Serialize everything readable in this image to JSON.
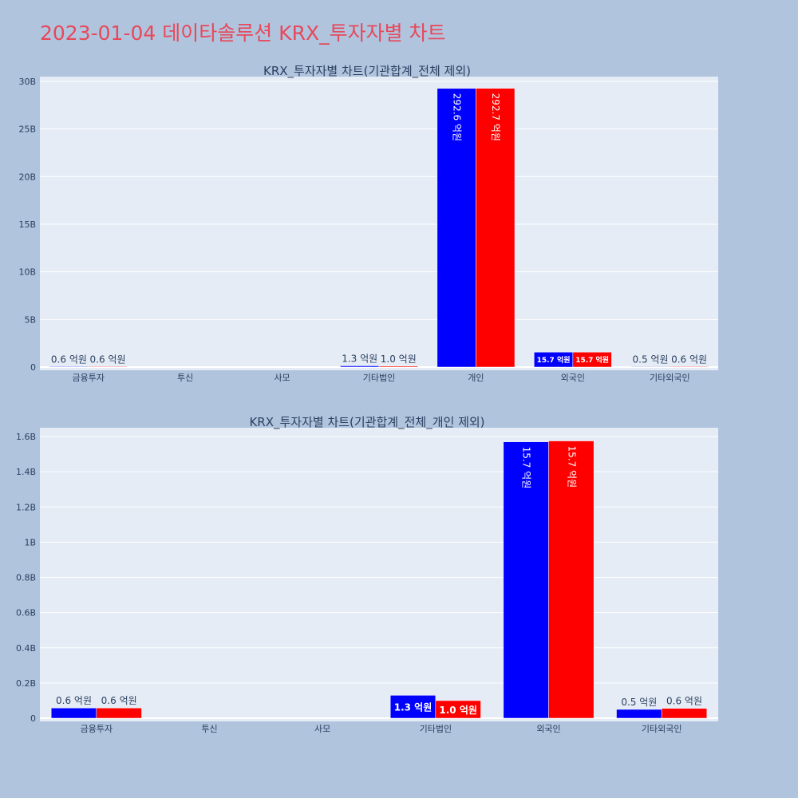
{
  "page_title": "2023-01-04 데이타솔루션 KRX_투자자별 차트",
  "colors": {
    "background": "#b0c4de",
    "plot_bg": "#e5ecf6",
    "title": "#e8485a",
    "buy": "#0000ff",
    "sell": "#ff0000"
  },
  "chart_data": [
    {
      "type": "bar",
      "title": "KRX_투자자별 차트(기관합계_전체 제외)",
      "categories": [
        "금융투자",
        "투신",
        "사모",
        "기타법인",
        "개인",
        "외국인",
        "기타외국인"
      ],
      "series": [
        {
          "color": "#0000ff",
          "values": [
            0.06,
            0,
            0,
            0.13,
            29.26,
            1.57,
            0.05
          ],
          "labels": [
            "0.6 억원",
            "",
            "",
            "1.3 억원",
            "292.6 억원",
            "15.7 억원",
            "0.5 억원"
          ]
        },
        {
          "color": "#ff0000",
          "values": [
            0.06,
            0,
            0,
            0.1,
            29.27,
            1.57,
            0.06
          ],
          "labels": [
            "0.6 억원",
            "",
            "",
            "1.0 억원",
            "292.7 억원",
            "15.7 억원",
            "0.6 억원"
          ]
        }
      ],
      "yticks": [
        "0",
        "5B",
        "10B",
        "15B",
        "20B",
        "25B",
        "30B"
      ],
      "ylim": [
        0,
        30.5
      ]
    },
    {
      "type": "bar",
      "title": "KRX_투자자별 차트(기관합계_전체_개인 제외)",
      "categories": [
        "금융투자",
        "투신",
        "사모",
        "기타법인",
        "외국인",
        "기타외국인"
      ],
      "series": [
        {
          "color": "#0000ff",
          "values": [
            0.058,
            0,
            0,
            0.13,
            1.57,
            0.05
          ],
          "labels": [
            "0.6 억원",
            "",
            "",
            "1.3 억원",
            "15.7 억원",
            "0.5 억원"
          ]
        },
        {
          "color": "#ff0000",
          "values": [
            0.058,
            0,
            0,
            0.1,
            1.575,
            0.056
          ],
          "labels": [
            "0.6 억원",
            "",
            "",
            "1.0 억원",
            "15.7 억원",
            "0.6 억원"
          ]
        }
      ],
      "yticks": [
        "0",
        "0.2B",
        "0.4B",
        "0.6B",
        "0.8B",
        "1B",
        "1.2B",
        "1.4B",
        "1.6B"
      ],
      "ylim": [
        0,
        1.65
      ]
    }
  ]
}
